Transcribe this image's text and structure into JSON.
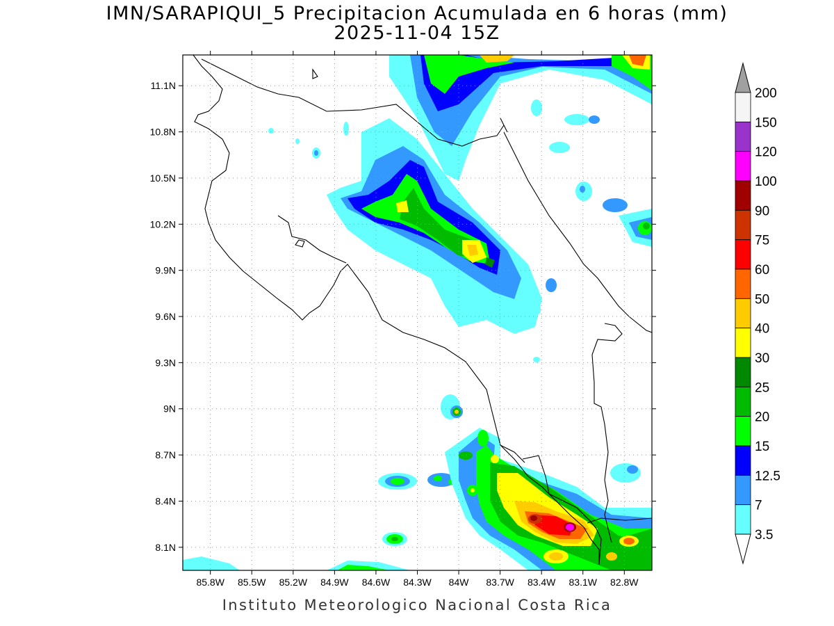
{
  "header": {
    "title": "IMN/SARAPIQUI_5 Precipitacion Acumulada en 6 horas (mm)",
    "subtitle": "2025-11-04 15Z"
  },
  "footer": {
    "credit": "Instituto Meteorologico Nacional Costa Rica"
  },
  "map": {
    "lon_range": [
      -86.0,
      -82.6
    ],
    "lat_range": [
      7.95,
      11.3
    ],
    "lat_ticks": [
      "11.1N",
      "10.8N",
      "10.5N",
      "10.2N",
      "9.9N",
      "9.6N",
      "9.3N",
      "9N",
      "8.7N",
      "8.4N",
      "8.1N"
    ],
    "lon_ticks": [
      "85.8W",
      "85.5W",
      "85.2W",
      "84.9W",
      "84.6W",
      "84.3W",
      "84W",
      "83.7W",
      "83.4W",
      "83.1W",
      "82.8W"
    ],
    "grid": "dotted"
  },
  "colorbar": {
    "levels": [
      "200",
      "150",
      "120",
      "100",
      "90",
      "75",
      "60",
      "50",
      "40",
      "30",
      "25",
      "20",
      "15",
      "12.5",
      "7",
      "3.5"
    ],
    "colors": {
      "over": "#a0a0a0",
      "150-200": "#f5f5f5",
      "120-150": "#9933cc",
      "100-120": "#ff00ff",
      "90-100": "#a00000",
      "75-90": "#cc3300",
      "60-75": "#ff0000",
      "50-60": "#ff6600",
      "40-50": "#ffcc00",
      "30-40": "#ffff00",
      "25-30": "#008800",
      "20-25": "#00bb00",
      "15-20": "#00ff00",
      "12.5-15": "#0000ff",
      "7-12.5": "#3399ff",
      "3.5-7": "#66ffff",
      "under": "#ffffff"
    }
  }
}
